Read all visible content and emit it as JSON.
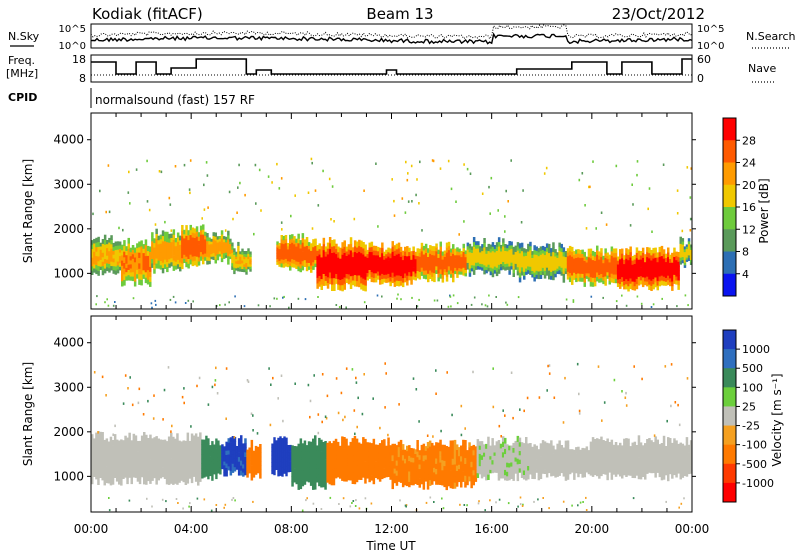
{
  "header": {
    "site": "Kodiak (fitACF)",
    "beam": "Beam 13",
    "date": "23/Oct/2012"
  },
  "noise_panel": {
    "left_label": "N.Sky",
    "right_label": "N.Search",
    "left_ticks": [
      "10^5",
      "10^0"
    ],
    "right_ticks": [
      "10^5",
      "10^0"
    ]
  },
  "freq_panel": {
    "left_label_line1": "Freq.",
    "left_label_line2": "[MHz]",
    "right_label": "Nave",
    "left_ticks": [
      "18",
      "8"
    ],
    "right_ticks": [
      "60",
      "0"
    ]
  },
  "cpid_panel": {
    "label": "CPID",
    "program": "normalsound (fast) 157 RF"
  },
  "power_panel": {
    "ylabel": "Slant Range [km]",
    "yticks": [
      "4000",
      "3000",
      "2000",
      "1000"
    ],
    "colorbar_label": "Power [dB]",
    "colorbar_ticks": [
      "28",
      "24",
      "20",
      "16",
      "12",
      "8",
      "4"
    ],
    "colorbar_colors": [
      "#ff0000",
      "#ff5a00",
      "#ff9b00",
      "#f0c800",
      "#6ecb3c",
      "#5a9a5a",
      "#2d6fb4",
      "#0a14f0"
    ]
  },
  "velocity_panel": {
    "ylabel": "Slant Range [km]",
    "yticks": [
      "4000",
      "3000",
      "2000",
      "1000"
    ],
    "colorbar_label": "Velocity  [m s⁻¹]",
    "colorbar_ticks": [
      "1000",
      "500",
      "100",
      "25",
      "-25",
      "-100",
      "-500",
      "-1000"
    ],
    "colorbar_colors": [
      "#1f3fbf",
      "#2f6fbf",
      "#3a8a5a",
      "#6ccf3c",
      "#c0c0b8",
      "#f5a020",
      "#ff7a00",
      "#ff3a00",
      "#ff0000"
    ]
  },
  "time_axis": {
    "xlabel": "Time UT",
    "ticks": [
      "00:00",
      "04:00",
      "08:00",
      "12:00",
      "16:00",
      "20:00",
      "00:00"
    ]
  },
  "chart_data": [
    {
      "type": "heatmap",
      "title": "",
      "xlabel": "",
      "ylabel": "Slant Range [km]",
      "xlim": [
        0,
        24
      ],
      "ylim": [
        200,
        4600
      ],
      "colorbar": "Power [dB]",
      "bands": [
        {
          "t0": 0.0,
          "t1": 1.2,
          "lo": 1000,
          "hi": 1800,
          "v": 18
        },
        {
          "t0": 1.2,
          "t1": 2.4,
          "lo": 800,
          "hi": 1700,
          "v": 22
        },
        {
          "t0": 2.4,
          "t1": 3.6,
          "lo": 1100,
          "hi": 1900,
          "v": 20
        },
        {
          "t0": 3.6,
          "t1": 4.6,
          "lo": 1200,
          "hi": 2000,
          "v": 24
        },
        {
          "t0": 4.6,
          "t1": 5.6,
          "lo": 1300,
          "hi": 1900,
          "v": 20
        },
        {
          "t0": 5.6,
          "t1": 6.4,
          "lo": 1000,
          "hi": 1600,
          "v": 18
        },
        {
          "t0": 7.4,
          "t1": 9.0,
          "lo": 1100,
          "hi": 1800,
          "v": 24
        },
        {
          "t0": 9.0,
          "t1": 11.0,
          "lo": 700,
          "hi": 1700,
          "v": 28
        },
        {
          "t0": 11.0,
          "t1": 13.0,
          "lo": 800,
          "hi": 1600,
          "v": 28
        },
        {
          "t0": 13.0,
          "t1": 15.0,
          "lo": 900,
          "hi": 1600,
          "v": 24
        },
        {
          "t0": 15.0,
          "t1": 17.0,
          "lo": 1000,
          "hi": 1700,
          "v": 16
        },
        {
          "t0": 17.0,
          "t1": 19.0,
          "lo": 900,
          "hi": 1600,
          "v": 16
        },
        {
          "t0": 19.0,
          "t1": 21.0,
          "lo": 800,
          "hi": 1500,
          "v": 24
        },
        {
          "t0": 21.0,
          "t1": 23.5,
          "lo": 700,
          "hi": 1500,
          "v": 28
        },
        {
          "t0": 23.5,
          "t1": 24.0,
          "lo": 1200,
          "hi": 1700,
          "v": 16
        }
      ]
    },
    {
      "type": "heatmap",
      "title": "",
      "xlabel": "Time UT",
      "ylabel": "Slant Range [km]",
      "xlim": [
        0,
        24
      ],
      "ylim": [
        200,
        4600
      ],
      "colorbar": "Velocity [m s-1]",
      "bands": [
        {
          "t0": 0.0,
          "t1": 4.4,
          "lo": 900,
          "hi": 1900,
          "v": 0
        },
        {
          "t0": 4.4,
          "t1": 5.2,
          "lo": 1000,
          "hi": 1800,
          "v": 200
        },
        {
          "t0": 5.2,
          "t1": 6.2,
          "lo": 1100,
          "hi": 1800,
          "v": 700
        },
        {
          "t0": 6.2,
          "t1": 6.8,
          "lo": 1000,
          "hi": 1700,
          "v": -300
        },
        {
          "t0": 7.2,
          "t1": 8.0,
          "lo": 1100,
          "hi": 1800,
          "v": 800
        },
        {
          "t0": 8.0,
          "t1": 9.4,
          "lo": 800,
          "hi": 1800,
          "v": 150
        },
        {
          "t0": 9.4,
          "t1": 12.0,
          "lo": 900,
          "hi": 1800,
          "v": -150
        },
        {
          "t0": 12.0,
          "t1": 15.4,
          "lo": 800,
          "hi": 1700,
          "v": -120
        },
        {
          "t0": 15.4,
          "t1": 17.5,
          "lo": 1000,
          "hi": 1800,
          "v": 10
        },
        {
          "t0": 17.5,
          "t1": 20.0,
          "lo": 1000,
          "hi": 1700,
          "v": 0
        },
        {
          "t0": 20.0,
          "t1": 24.0,
          "lo": 1000,
          "hi": 1800,
          "v": 0
        }
      ]
    }
  ]
}
